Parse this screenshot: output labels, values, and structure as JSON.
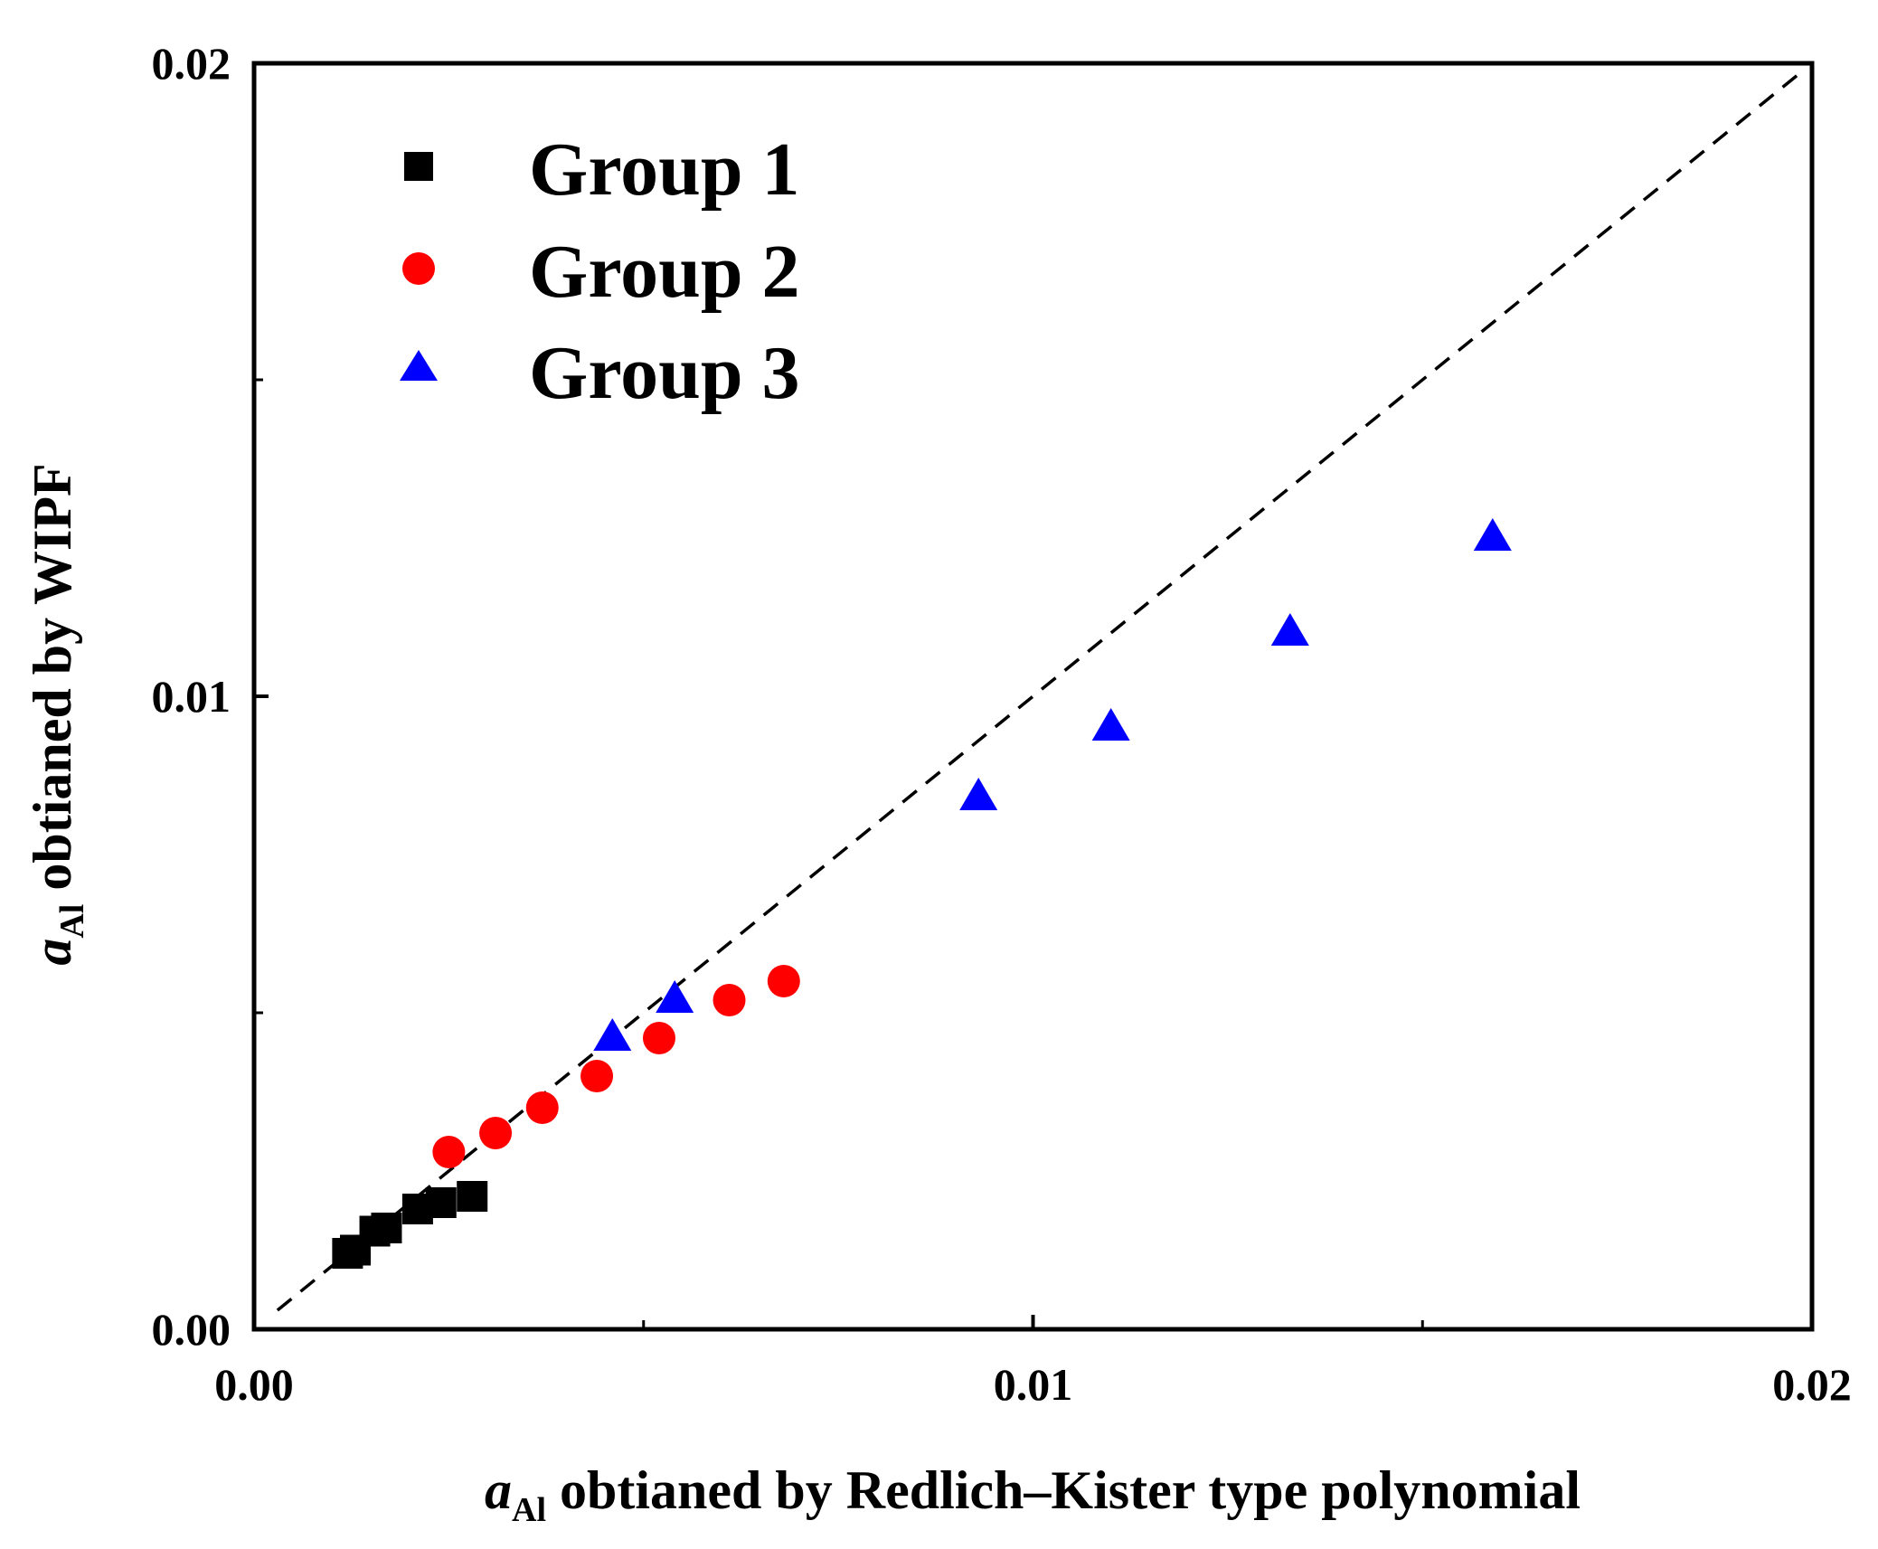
{
  "chart_data": {
    "type": "scatter",
    "title": "",
    "xlabel": {
      "main": "a",
      "sub": "Al",
      "rest": " obtianed by Redlich–Kister type polynomial"
    },
    "ylabel": {
      "main": "a",
      "sub": "Al",
      "rest": " obtianed by WIPF"
    },
    "xlim": [
      0,
      0.02
    ],
    "ylim": [
      0,
      0.02
    ],
    "xticks": [
      {
        "value": 0,
        "label": "0.00"
      },
      {
        "value": 0.01,
        "label": "0.01"
      },
      {
        "value": 0.02,
        "label": "0.02"
      }
    ],
    "yticks": [
      {
        "value": 0,
        "label": "0.00"
      },
      {
        "value": 0.01,
        "label": "0.01"
      },
      {
        "value": 0.02,
        "label": "0.02"
      }
    ],
    "minor_ticks": [
      0.005,
      0.015
    ],
    "reference_line": {
      "style": "dashed",
      "color": "#000000",
      "from": [
        0.0003,
        0.0003
      ],
      "to": [
        0.0199,
        0.0199
      ]
    },
    "legend_position": "top-left",
    "series": [
      {
        "name": "Group 1",
        "marker": "square",
        "color": "#000000",
        "x": [
          0.0012,
          0.0013,
          0.00155,
          0.0017,
          0.0021,
          0.0024,
          0.0028
        ],
        "y": [
          0.0012,
          0.00125,
          0.00155,
          0.0016,
          0.0019,
          0.002,
          0.0021
        ]
      },
      {
        "name": "Group 2",
        "marker": "circle",
        "color": "#ff0000",
        "x": [
          0.0025,
          0.0031,
          0.0037,
          0.0044,
          0.0052,
          0.0061,
          0.0068
        ],
        "y": [
          0.0028,
          0.0031,
          0.0035,
          0.004,
          0.0046,
          0.0052,
          0.0055
        ]
      },
      {
        "name": "Group 3",
        "marker": "triangle",
        "color": "#0000ff",
        "x": [
          0.0046,
          0.0054,
          0.0093,
          0.011,
          0.0133,
          0.0159
        ],
        "y": [
          0.0046,
          0.0052,
          0.0084,
          0.0095,
          0.011,
          0.0125
        ]
      }
    ]
  }
}
